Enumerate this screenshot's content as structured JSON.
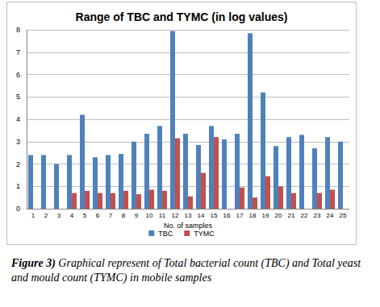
{
  "chart_data": {
    "type": "bar",
    "title": "Range of TBC and TYMC (in log values)",
    "x_label": "No. of samples",
    "caption": "Figure 3) Graphical represent of Total bacterial count (TBC) and Total yeast and mould count (TYMC) in mobile samples",
    "categories": [
      "1",
      "2",
      "3",
      "4",
      "5",
      "6",
      "7",
      "8",
      "9",
      "10",
      "11",
      "12",
      "13",
      "14",
      "15",
      "16",
      "17",
      "18",
      "19",
      "20",
      "21",
      "22",
      "23",
      "24",
      "25"
    ],
    "series": [
      {
        "name": "TBC",
        "color": "#4f81bd",
        "values": [
          2.4,
          2.4,
          2.0,
          2.4,
          4.2,
          2.3,
          2.4,
          2.45,
          3.0,
          3.35,
          3.7,
          7.95,
          3.35,
          2.85,
          3.7,
          3.1,
          3.35,
          7.85,
          5.2,
          2.8,
          3.2,
          3.3,
          2.7,
          3.2,
          3.0
        ]
      },
      {
        "name": "TYMC",
        "color": "#c0504d",
        "values": [
          0,
          0,
          0,
          0.7,
          0.8,
          0.7,
          0.7,
          0.8,
          0.65,
          0.85,
          0.8,
          3.15,
          0.55,
          1.6,
          3.2,
          0,
          0.95,
          0.5,
          1.45,
          1.0,
          0.7,
          0,
          0.7,
          0.85,
          0
        ]
      }
    ],
    "ylim": [
      0,
      8
    ],
    "yticks": [
      0,
      1,
      2,
      3,
      4,
      5,
      6,
      7,
      8
    ],
    "grid": true,
    "legend": "bottom"
  }
}
